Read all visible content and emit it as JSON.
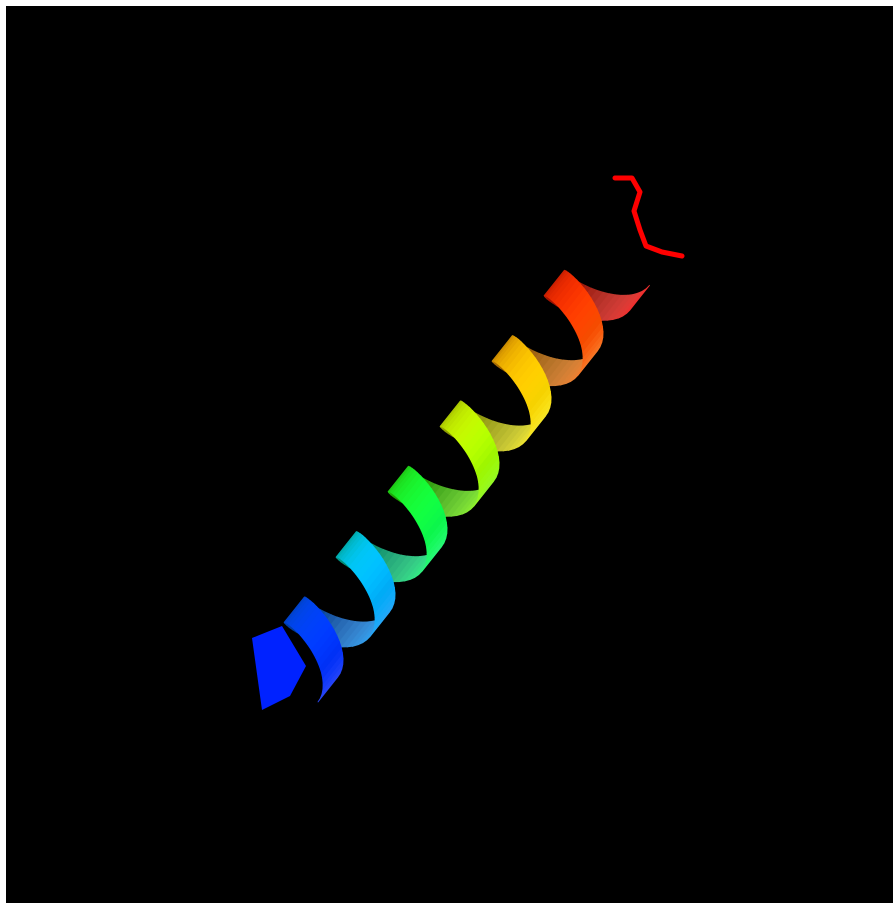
{
  "viewer": {
    "background_color": "#000000",
    "frame_color": "#ffffff",
    "structure": "alpha-helix",
    "representation": "ribbon",
    "coloring": "rainbow-n-to-c",
    "turns": 6,
    "color_stops": [
      "#0022ff",
      "#0066ff",
      "#00ccff",
      "#00ff66",
      "#33ff00",
      "#ccff00",
      "#ffee00",
      "#ff9900",
      "#ff3300",
      "#ff0000"
    ]
  }
}
